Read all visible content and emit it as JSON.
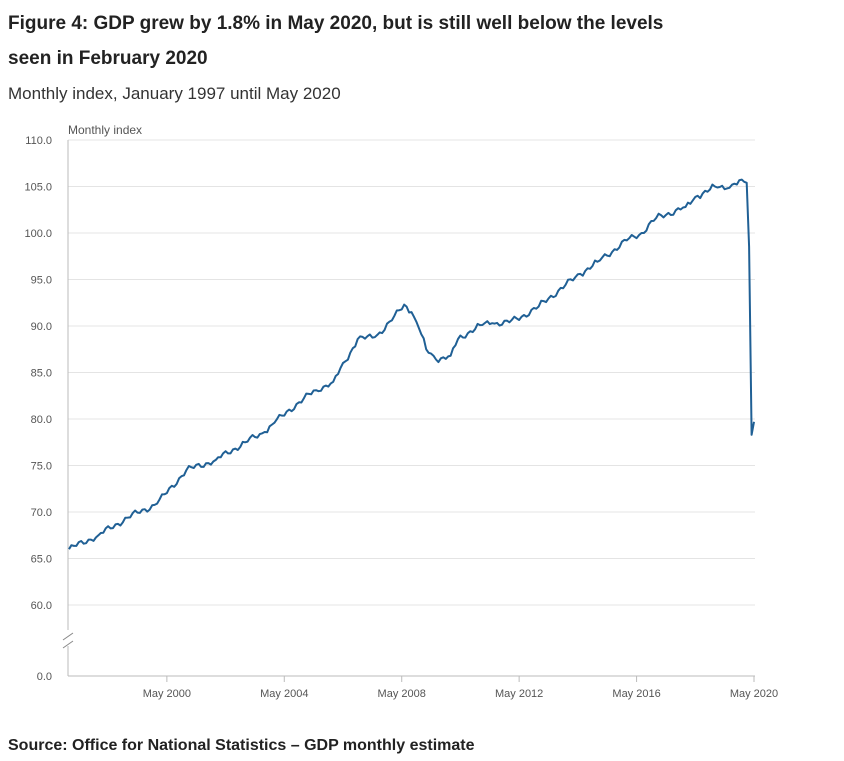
{
  "figure": {
    "title": "Figure 4: GDP grew by 1.8% in May 2020, but is still well below the levels seen in February 2020",
    "subtitle": "Monthly index, January 1997 until May 2020",
    "source": "Source: Office for National Statistics – GDP monthly estimate"
  },
  "chart_data": {
    "type": "line",
    "title": "Figure 4: GDP grew by 1.8% in May 2020, but is still well below the levels seen in February 2020",
    "subtitle": "Monthly index, January 1997 until May 2020",
    "ylabel": "Monthly index",
    "xlabel": "",
    "ylim": [
      0,
      110
    ],
    "axis_break": [
      0,
      55
    ],
    "y_ticks": [
      "0.0",
      "60.0",
      "65.0",
      "70.0",
      "75.0",
      "80.0",
      "85.0",
      "90.0",
      "95.0",
      "100.0",
      "105.0",
      "110.0"
    ],
    "x_ticks": [
      "May 2000",
      "May 2004",
      "May 2008",
      "May 2012",
      "May 2016",
      "May 2020"
    ],
    "grid": true,
    "line_color": "#206095",
    "series": [
      {
        "name": "GDP monthly index",
        "start": "January 1997",
        "frequency": "monthly",
        "anchors": [
          {
            "date": "1997-01",
            "value": 66.0
          },
          {
            "date": "1998-01",
            "value": 67.5
          },
          {
            "date": "1999-01",
            "value": 69.4
          },
          {
            "date": "2000-01",
            "value": 70.9
          },
          {
            "date": "2001-01",
            "value": 74.5
          },
          {
            "date": "2002-01",
            "value": 75.6
          },
          {
            "date": "2003-01",
            "value": 77.5
          },
          {
            "date": "2003-09",
            "value": 78.6
          },
          {
            "date": "2004-01",
            "value": 79.6
          },
          {
            "date": "2004-10",
            "value": 81.6
          },
          {
            "date": "2005-06",
            "value": 83.1
          },
          {
            "date": "2006-01",
            "value": 84.0
          },
          {
            "date": "2006-06",
            "value": 86.2
          },
          {
            "date": "2006-11",
            "value": 88.6
          },
          {
            "date": "2007-06",
            "value": 88.8
          },
          {
            "date": "2008-01",
            "value": 90.6
          },
          {
            "date": "2008-06",
            "value": 92.3
          },
          {
            "date": "2008-09",
            "value": 91.5
          },
          {
            "date": "2008-12",
            "value": 89.8
          },
          {
            "date": "2009-03",
            "value": 87.5
          },
          {
            "date": "2009-07",
            "value": 86.4
          },
          {
            "date": "2010-01",
            "value": 86.8
          },
          {
            "date": "2010-04",
            "value": 88.6
          },
          {
            "date": "2011-01",
            "value": 90.1
          },
          {
            "date": "2011-06",
            "value": 90.3
          },
          {
            "date": "2012-01",
            "value": 90.4
          },
          {
            "date": "2012-06",
            "value": 91.0
          },
          {
            "date": "2013-01",
            "value": 92.1
          },
          {
            "date": "2013-09",
            "value": 93.8
          },
          {
            "date": "2014-06",
            "value": 95.6
          },
          {
            "date": "2015-01",
            "value": 96.9
          },
          {
            "date": "2016-01",
            "value": 99.2
          },
          {
            "date": "2016-07",
            "value": 100.0
          },
          {
            "date": "2017-01",
            "value": 101.6
          },
          {
            "date": "2018-01",
            "value": 102.8
          },
          {
            "date": "2018-06",
            "value": 104.0
          },
          {
            "date": "2019-01",
            "value": 105.0
          },
          {
            "date": "2019-06",
            "value": 104.8
          },
          {
            "date": "2019-09",
            "value": 105.3
          },
          {
            "date": "2020-01",
            "value": 105.5
          },
          {
            "date": "2020-02",
            "value": 105.4
          },
          {
            "date": "2020-03",
            "value": 98.5
          },
          {
            "date": "2020-04",
            "value": 78.3
          },
          {
            "date": "2020-05",
            "value": 79.7
          }
        ]
      }
    ]
  }
}
